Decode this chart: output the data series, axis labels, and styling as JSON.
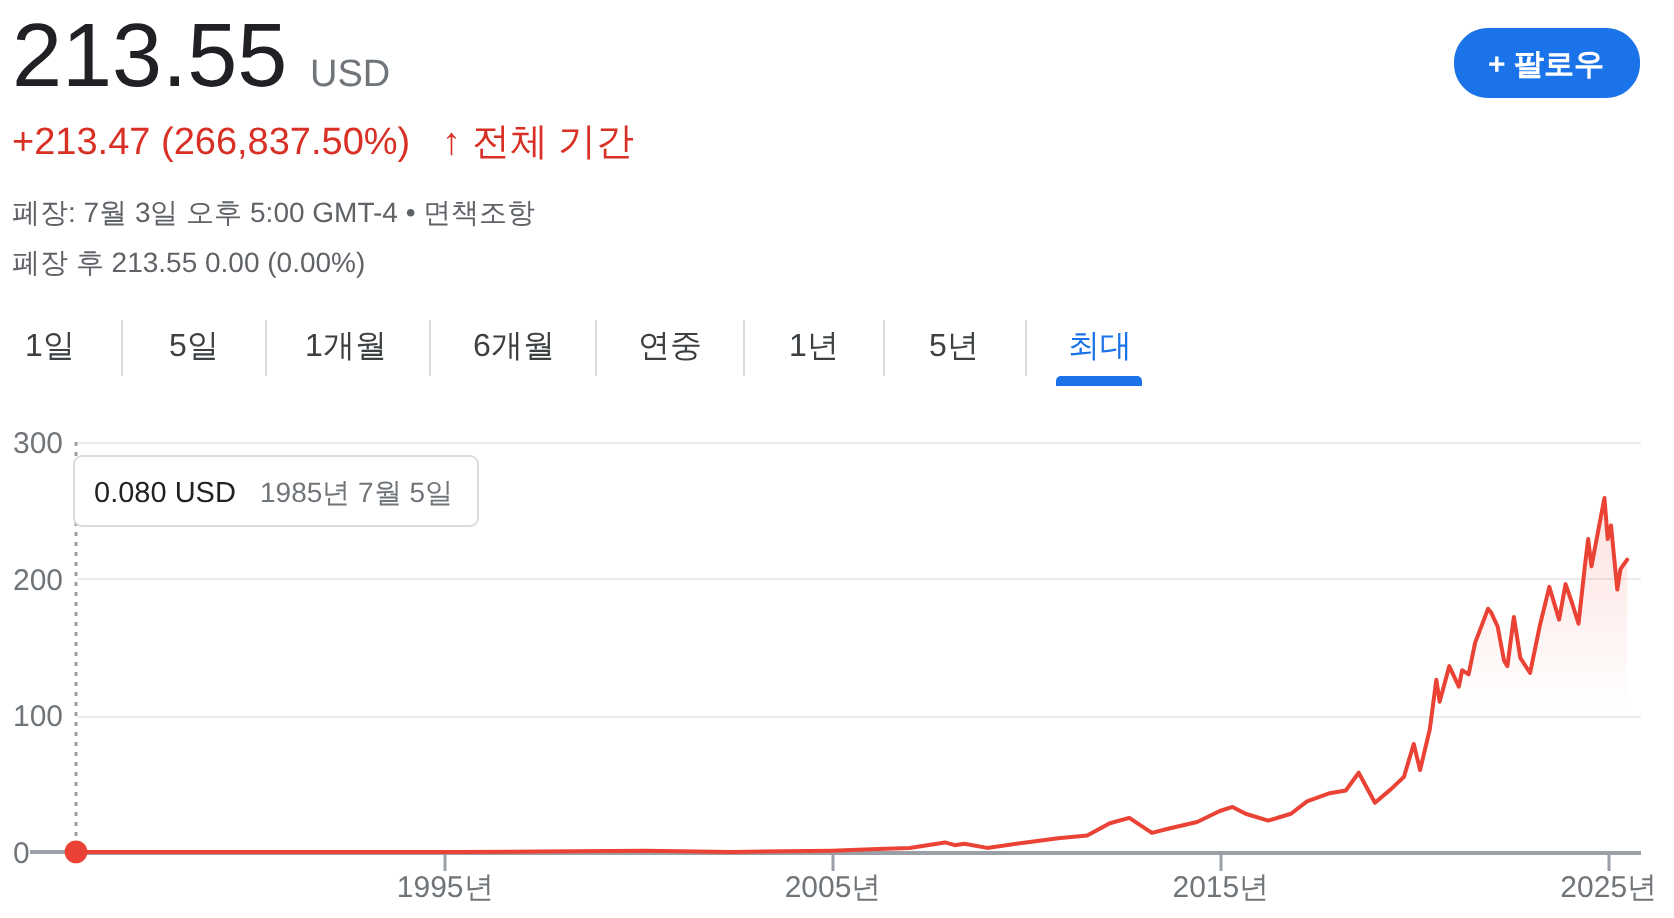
{
  "chart_data": {
    "type": "area",
    "title": "213.55",
    "annotations": [
      "USD",
      "+213.47 (266,837.50%)",
      "↑ 전체 기간",
      "폐장: 7월 3일 오후 5:00 GMT-4 • 면책조항",
      "폐장 후 213.55 0.00 (0.00%)",
      "1일",
      "5일",
      "1개월",
      "6개월",
      "연중",
      "1년",
      "5년",
      "최대",
      "+ 팔로우",
      "0.080 USD",
      "1985년 7월 5일"
    ],
    "x": [
      "1985-07-05",
      "1991-01",
      "1995-06",
      "2000-03",
      "2002-06",
      "2005-01",
      "2006-01",
      "2007-01",
      "2007-12",
      "2008-03",
      "2008-06",
      "2009-01",
      "2010-01",
      "2010-11",
      "2011-08",
      "2012-03",
      "2012-09",
      "2013-04",
      "2013-09",
      "2014-06",
      "2015-01",
      "2015-05",
      "2015-09",
      "2016-04",
      "2016-11",
      "2017-04",
      "2017-11",
      "2018-04",
      "2018-08",
      "2019-01",
      "2019-06",
      "2019-10",
      "2020-01",
      "2020-03",
      "2020-06",
      "2020-08",
      "2020-09",
      "2020-12",
      "2021-03",
      "2021-04",
      "2021-06",
      "2021-08",
      "2021-12",
      "2022-01",
      "2022-03",
      "2022-05",
      "2022-06",
      "2022-08",
      "2022-10",
      "2023-01",
      "2023-04",
      "2023-07",
      "2023-10",
      "2023-12",
      "2024-02",
      "2024-04",
      "2024-06",
      "2024-07",
      "2024-08",
      "2024-10",
      "2024-12",
      "2025-01",
      "2025-02",
      "2025-04",
      "2025-05",
      "2025-07-03"
    ],
    "series": [
      {
        "color": "#ea4335",
        "values": [
          0.08,
          0,
          0,
          1,
          0,
          1,
          2,
          3,
          7,
          5,
          6,
          3,
          7,
          10,
          12,
          21,
          25,
          14,
          17,
          22,
          30,
          33,
          28,
          23,
          28,
          37,
          43,
          45,
          58,
          36,
          46,
          55,
          79,
          60,
          90,
          126,
          110,
          136,
          121,
          133,
          130,
          153,
          178,
          175,
          165,
          140,
          136,
          172,
          142,
          131,
          165,
          194,
          170,
          196,
          182,
          167,
          210,
          229,
          209,
          234,
          259,
          229,
          239,
          192,
          207,
          214
        ]
      }
    ],
    "xlim": [
      "1985-07-05",
      "2025-11-01"
    ],
    "xticks": [
      {
        "value": "1995",
        "label": "1995년"
      },
      {
        "value": "2005",
        "label": "2005년"
      },
      {
        "value": "2015",
        "label": "2015년"
      },
      {
        "value": "2025",
        "label": "2025년"
      }
    ],
    "ylim": [
      0,
      300
    ],
    "yticks": [
      0,
      100,
      200,
      300
    ],
    "grid": "y",
    "ref_lines": [
      {
        "axis": "x",
        "value": "1985-07-05",
        "color": "#9aa0a6",
        "line_style": "dotted"
      }
    ]
  }
}
